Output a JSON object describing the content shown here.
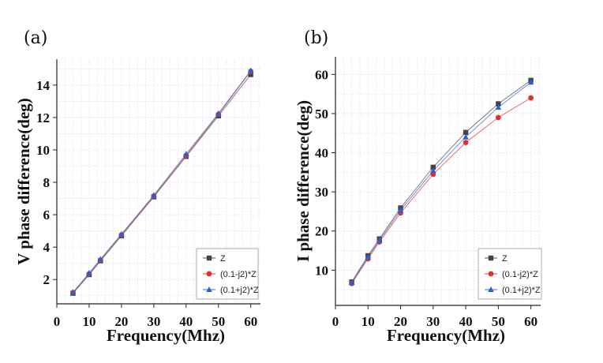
{
  "chart_data": [
    {
      "type": "line",
      "panel_label": "(a)",
      "xlabel": "Frequency(Mhz)",
      "ylabel": "V phase difference(deg)",
      "xlim": [
        0,
        63
      ],
      "ylim": [
        0.5,
        15.6
      ],
      "x_ticks": [
        0,
        10,
        20,
        30,
        40,
        50,
        60
      ],
      "y_ticks": [
        2,
        4,
        6,
        8,
        10,
        12,
        14
      ],
      "grid": true,
      "legend_position": "bottom-right",
      "x": [
        5,
        10,
        13.5,
        20,
        30,
        40,
        50,
        60
      ],
      "series": [
        {
          "name": "Z",
          "color": "#444444",
          "marker": "square",
          "values": [
            1.15,
            2.3,
            3.15,
            4.7,
            7.1,
            9.6,
            12.1,
            14.65
          ]
        },
        {
          "name": "(0.1-j2)*Z",
          "color": "#e0302a",
          "marker": "circle",
          "values": [
            1.2,
            2.35,
            3.2,
            4.75,
            7.15,
            9.65,
            12.2,
            14.85
          ]
        },
        {
          "name": "(0.1+j2)*Z",
          "color": "#2b5fd9",
          "marker": "triangle",
          "values": [
            1.2,
            2.4,
            3.25,
            4.8,
            7.2,
            9.75,
            12.25,
            14.9
          ]
        }
      ]
    },
    {
      "type": "line",
      "panel_label": "(b)",
      "xlabel": "Frequency(Mhz)",
      "ylabel": "I phase difference(deg)",
      "xlim": [
        0,
        63
      ],
      "ylim": [
        1,
        64.5
      ],
      "x_ticks": [
        0,
        10,
        20,
        30,
        40,
        50,
        60
      ],
      "y_ticks": [
        10,
        20,
        30,
        40,
        50,
        60
      ],
      "grid": true,
      "legend_position": "bottom-right",
      "x": [
        5,
        10,
        13.5,
        20,
        30,
        40,
        50,
        60
      ],
      "series": [
        {
          "name": "Z",
          "color": "#444444",
          "marker": "square",
          "values": [
            7.0,
            13.7,
            18.0,
            25.9,
            36.3,
            45.2,
            52.5,
            58.5
          ]
        },
        {
          "name": "(0.1-j2)*Z",
          "color": "#e0302a",
          "marker": "circle",
          "values": [
            6.6,
            12.9,
            17.2,
            24.6,
            34.5,
            42.6,
            49.0,
            54.0
          ]
        },
        {
          "name": "(0.1+j2)*Z",
          "color": "#2b5fd9",
          "marker": "triangle",
          "values": [
            6.8,
            13.3,
            17.6,
            25.3,
            35.4,
            44.0,
            51.6,
            58.0
          ]
        }
      ]
    }
  ]
}
